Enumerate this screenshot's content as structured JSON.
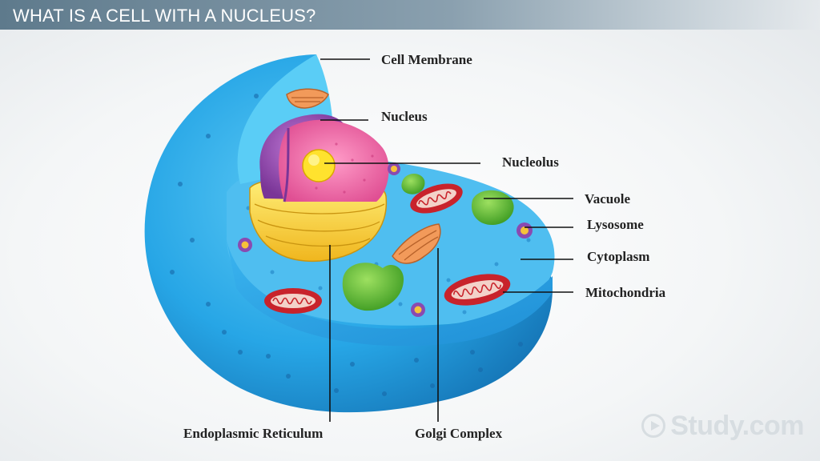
{
  "title": "WHAT IS A CELL WITH A NUCLEUS?",
  "labels": {
    "cell_membrane": "Cell Membrane",
    "nucleus": "Nucleus",
    "nucleolus": "Nucleolus",
    "vacuole": "Vacuole",
    "lysosome": "Lysosome",
    "cytoplasm": "Cytoplasm",
    "mitochondria": "Mitochondria",
    "endoplasmic_reticulum": "Endoplasmic Reticulum",
    "golgi_complex": "Golgi Complex"
  },
  "watermark": "Study.com",
  "colors": {
    "cell_blue": "#27a6e6",
    "cell_dark": "#1a86c9",
    "cytoplasm_light": "#5cc4f2",
    "nucleus_purple": "#9a4fb8",
    "nucleus_pink": "#f06aa6",
    "nucleolus_yellow": "#ffe22e",
    "er_yellow": "#f9d93a",
    "mito_red": "#c8232b",
    "vacuole_green": "#62c23a",
    "golgi_orange": "#f29a5a"
  }
}
